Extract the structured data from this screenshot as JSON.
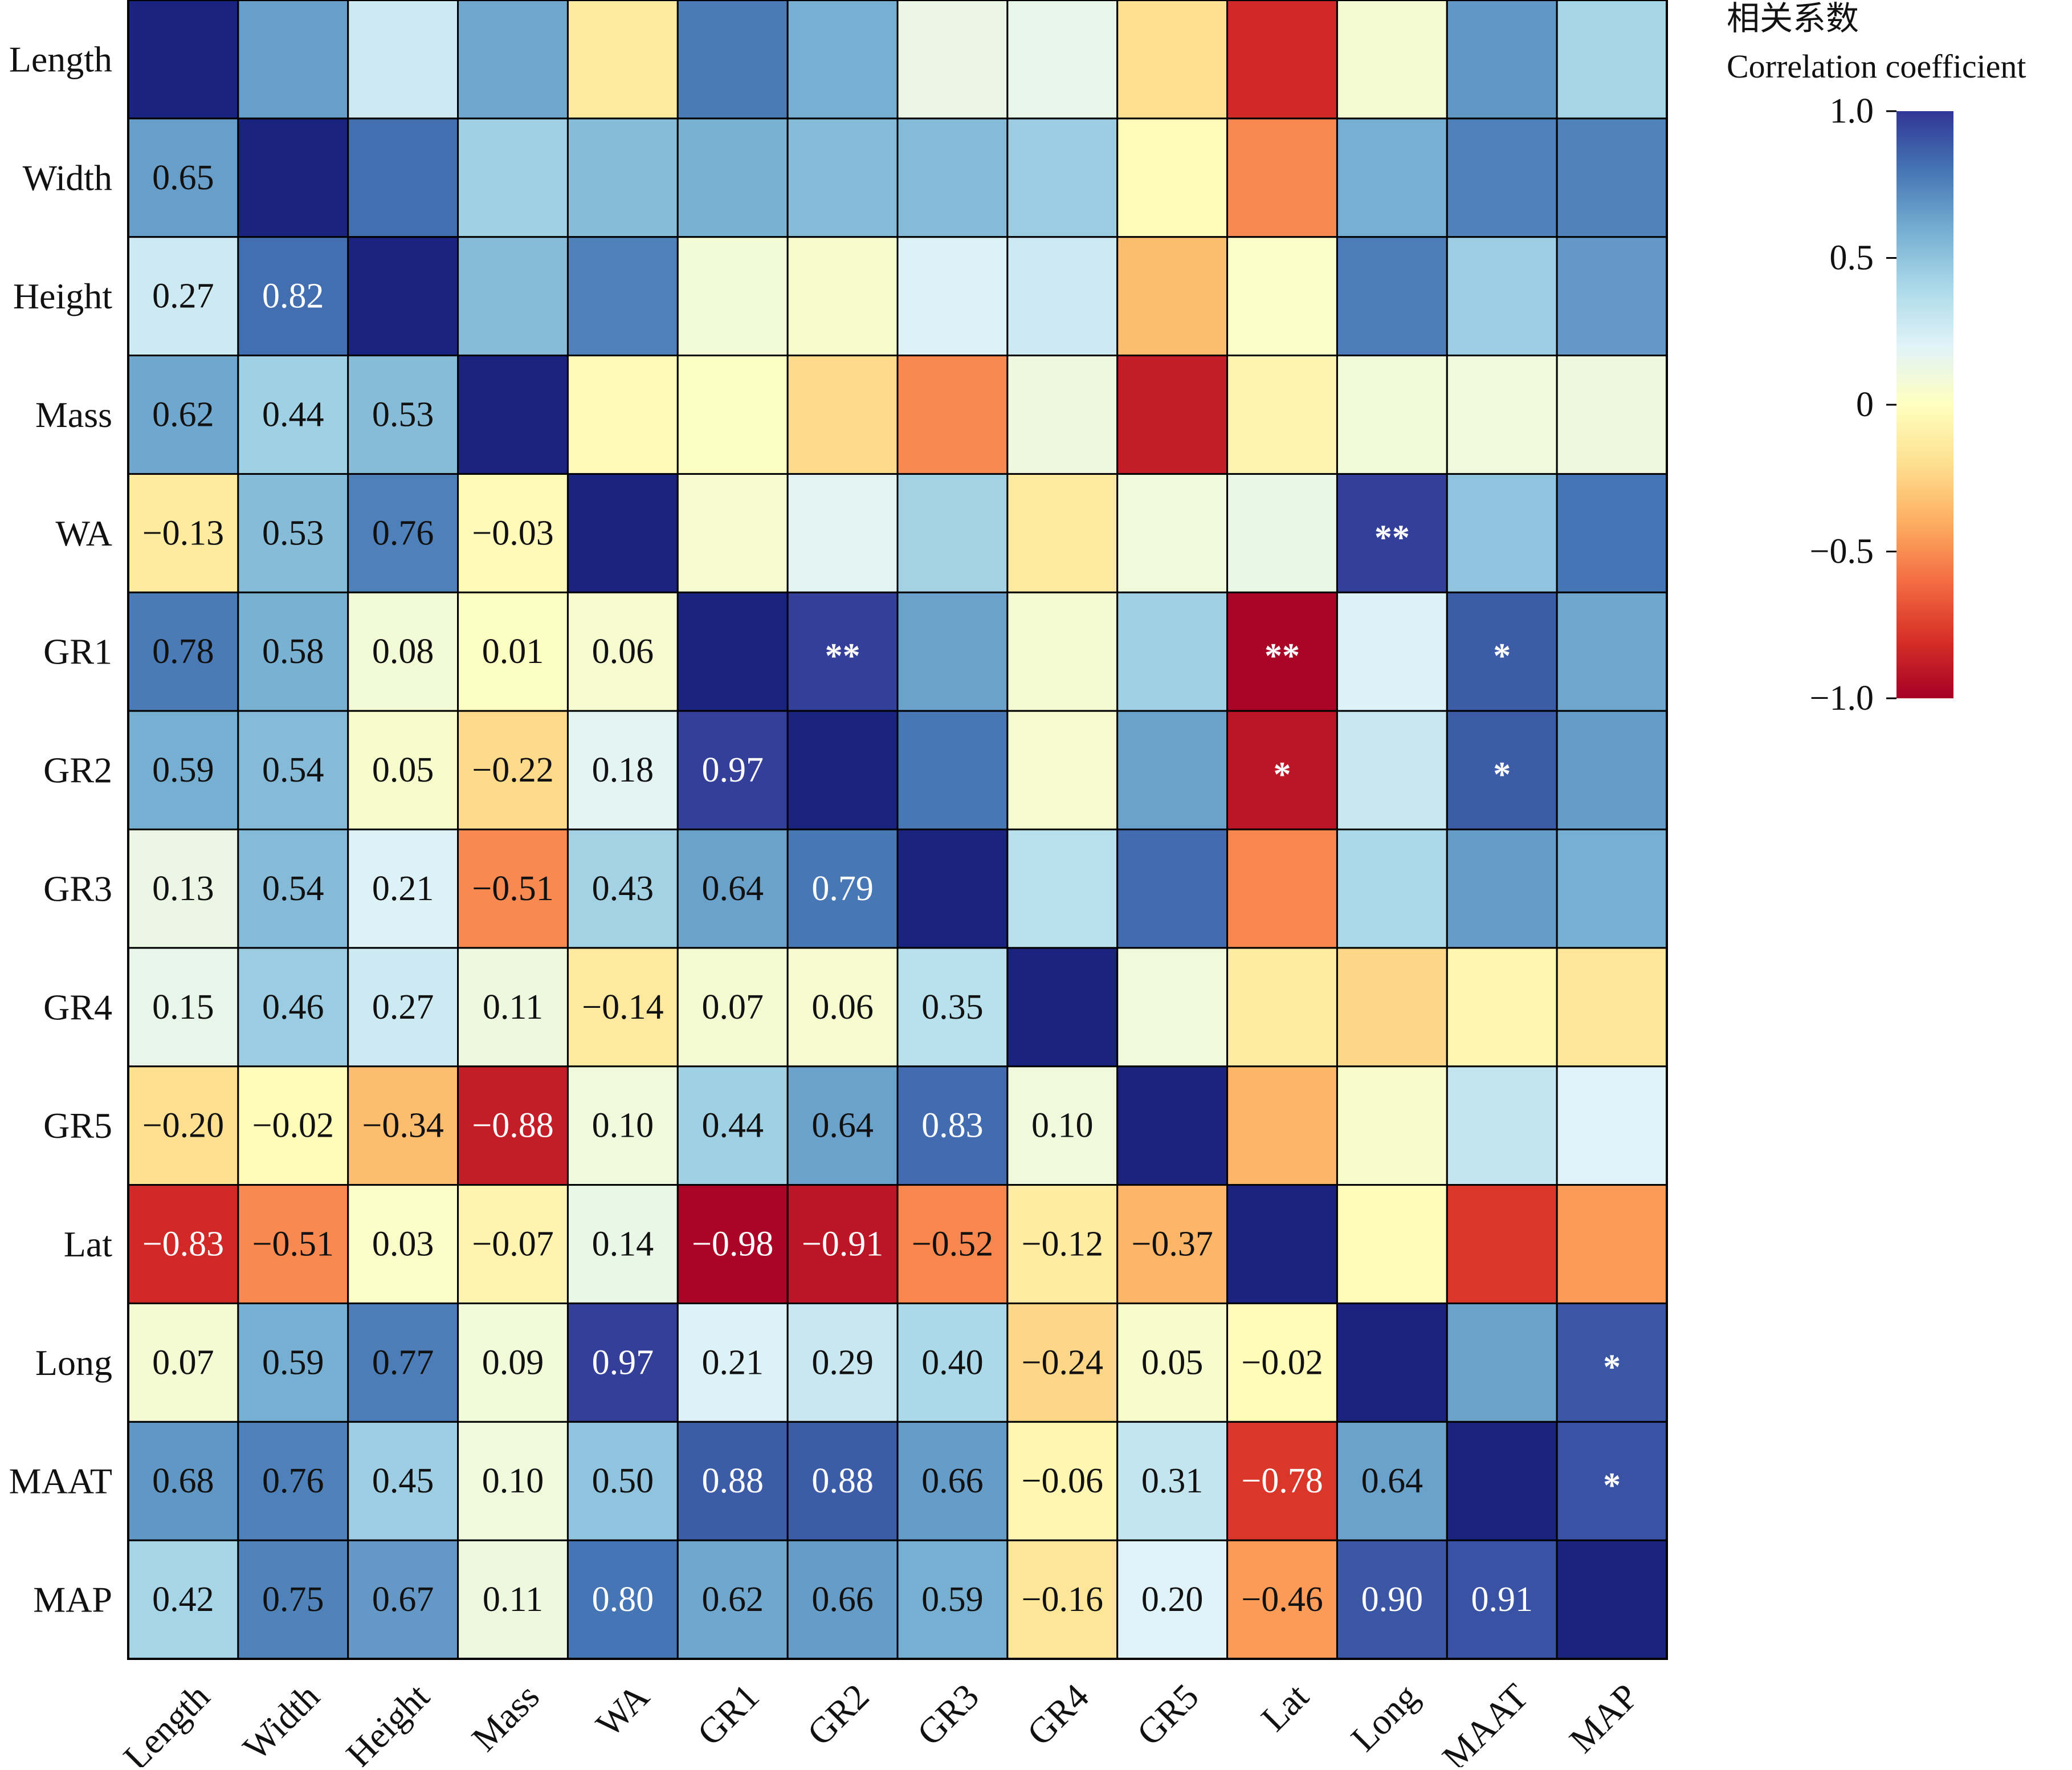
{
  "chart_data": {
    "type": "heatmap",
    "variables": [
      "Length",
      "Width",
      "Height",
      "Mass",
      "WA",
      "GR1",
      "GR2",
      "GR3",
      "GR4",
      "GR5",
      "Lat",
      "Long",
      "MAAT",
      "MAP"
    ],
    "lower_triangle_values": [
      [
        null
      ],
      [
        0.65,
        null
      ],
      [
        0.27,
        0.82,
        null
      ],
      [
        0.62,
        0.44,
        0.53,
        null
      ],
      [
        -0.13,
        0.53,
        0.76,
        -0.03,
        null
      ],
      [
        0.78,
        0.58,
        0.08,
        0.01,
        0.06,
        null
      ],
      [
        0.59,
        0.54,
        0.05,
        -0.22,
        0.18,
        0.97,
        null
      ],
      [
        0.13,
        0.54,
        0.21,
        -0.51,
        0.43,
        0.64,
        0.79,
        null
      ],
      [
        0.15,
        0.46,
        0.27,
        0.11,
        -0.14,
        0.07,
        0.06,
        0.35,
        null
      ],
      [
        -0.2,
        -0.02,
        -0.34,
        -0.88,
        0.1,
        0.44,
        0.64,
        0.83,
        0.1,
        null
      ],
      [
        -0.83,
        -0.51,
        0.03,
        -0.07,
        0.14,
        -0.98,
        -0.91,
        -0.52,
        -0.12,
        -0.37,
        null
      ],
      [
        0.07,
        0.59,
        0.77,
        0.09,
        0.97,
        0.21,
        0.29,
        0.4,
        -0.24,
        0.05,
        -0.02,
        null
      ],
      [
        0.68,
        0.76,
        0.45,
        0.1,
        0.5,
        0.88,
        0.88,
        0.66,
        -0.06,
        0.31,
        -0.78,
        0.64,
        null
      ],
      [
        0.42,
        0.75,
        0.67,
        0.11,
        0.8,
        0.62,
        0.66,
        0.59,
        -0.16,
        0.2,
        -0.46,
        0.9,
        0.91,
        null
      ]
    ],
    "significance": [
      {
        "row": "WA",
        "col": "Long",
        "mark": "**"
      },
      {
        "row": "GR1",
        "col": "GR2",
        "mark": "**"
      },
      {
        "row": "GR1",
        "col": "Lat",
        "mark": "**"
      },
      {
        "row": "GR1",
        "col": "MAAT",
        "mark": "*"
      },
      {
        "row": "GR2",
        "col": "Lat",
        "mark": "*"
      },
      {
        "row": "GR2",
        "col": "MAAT",
        "mark": "*"
      },
      {
        "row": "Long",
        "col": "MAP",
        "mark": "*"
      },
      {
        "row": "MAAT",
        "col": "MAP",
        "mark": "*"
      }
    ],
    "colorbar": {
      "title_cn": "相关系数",
      "title_en": "Correlation coefficient",
      "range": [
        -1.0,
        1.0
      ],
      "ticks": [
        1.0,
        0.5,
        0,
        -0.5,
        -1.0
      ],
      "tick_labels": [
        "1.0",
        "0.5",
        "0",
        "−0.5",
        "−1.0"
      ],
      "colormap": "RdYlBu"
    },
    "colors": {
      "dark_red": "#a50026",
      "mid_red": "#d73027",
      "orange": "#f46d43",
      "light_orange": "#fdae61",
      "pale_yellow": "#fee090",
      "neutral": "#ffffbf",
      "pale_blue": "#e0f3f8",
      "light_blue": "#abd9e9",
      "mid_blue": "#74add1",
      "blue": "#4575b4",
      "navy": "#313695",
      "diagonal": "#1a237e"
    }
  }
}
